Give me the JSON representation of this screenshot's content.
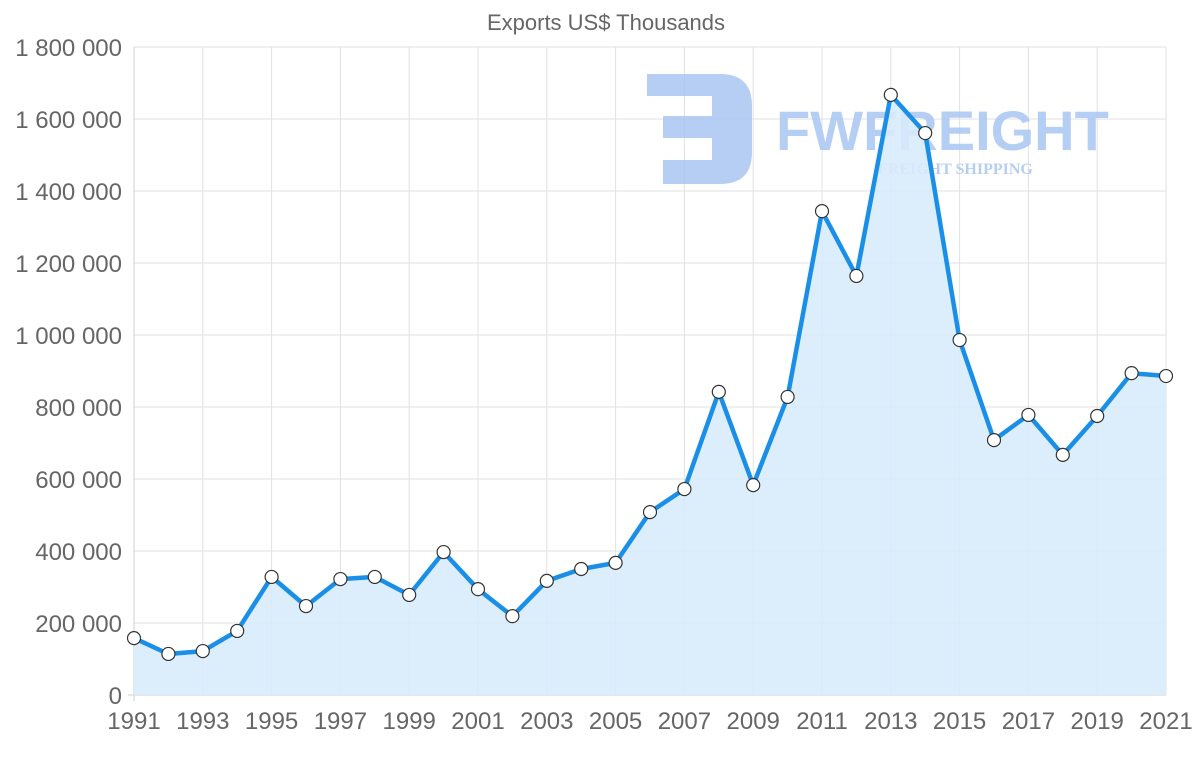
{
  "chart_data": {
    "type": "area",
    "title": "Exports US$ Thousands",
    "xlabel": "",
    "ylabel": "",
    "ylim": [
      0,
      1800000
    ],
    "grid": true,
    "legend": "none",
    "y_ticks": [
      0,
      200000,
      400000,
      600000,
      800000,
      1000000,
      1200000,
      1400000,
      1600000,
      1800000
    ],
    "y_tick_labels": [
      "0",
      "200 000",
      "400 000",
      "600 000",
      "800 000",
      "1 000 000",
      "1 200 000",
      "1 400 000",
      "1 600 000",
      "1 800 000"
    ],
    "x_tick_labels": [
      "1991",
      "1993",
      "1995",
      "1997",
      "1999",
      "2001",
      "2003",
      "2005",
      "2007",
      "2009",
      "2011",
      "2013",
      "2015",
      "2017",
      "2019",
      "2021"
    ],
    "categories": [
      "1991",
      "1992",
      "1993",
      "1994",
      "1995",
      "1996",
      "1997",
      "1998",
      "1999",
      "2000",
      "2001",
      "2002",
      "2003",
      "2004",
      "2005",
      "2006",
      "2007",
      "2008",
      "2009",
      "2010",
      "2011",
      "2012",
      "2013",
      "2014",
      "2015",
      "2016",
      "2017",
      "2018",
      "2019",
      "2020",
      "2021"
    ],
    "series": [
      {
        "name": "Exports US$ Thousands",
        "color": "#1a8fe8",
        "fill": "#d8ebfc",
        "values": [
          158000,
          114000,
          122000,
          178000,
          328000,
          247000,
          322000,
          328000,
          278000,
          397000,
          294000,
          219000,
          317000,
          350000,
          367000,
          508000,
          572000,
          842000,
          583000,
          828000,
          1344000,
          1164000,
          1667000,
          1561000,
          986000,
          708000,
          778000,
          667000,
          775000,
          894000,
          886000
        ]
      }
    ]
  },
  "watermark": {
    "brand": "FWFREIGHT",
    "tagline": "FREIGHT SHIPPING",
    "color": "#a9c6f2"
  }
}
